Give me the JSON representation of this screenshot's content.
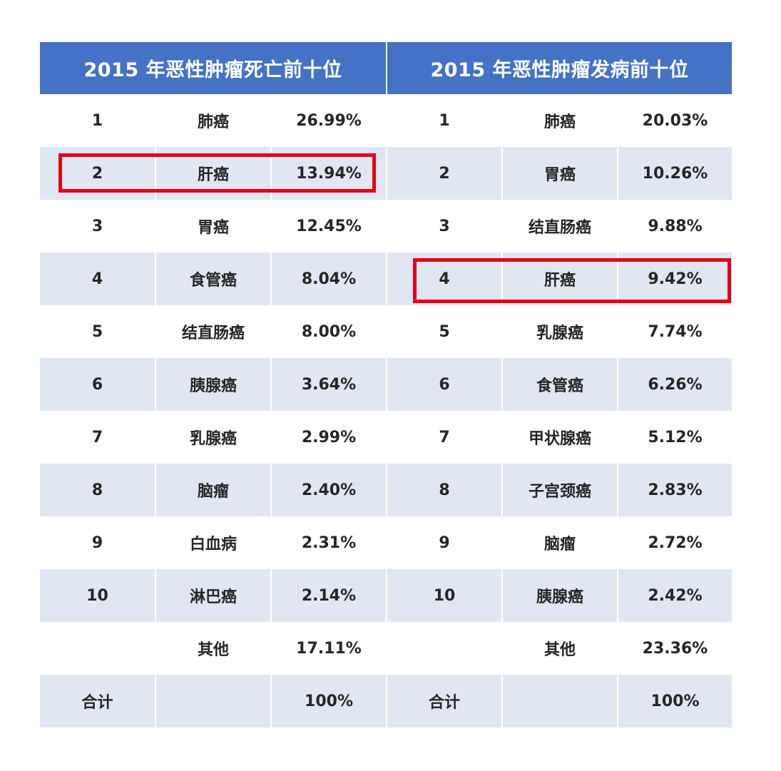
{
  "chart_data": {
    "type": "table",
    "columns": [
      {
        "title": "2015 年恶性肿瘤死亡前十位",
        "rows": [
          {
            "rank": "1",
            "name": "肺癌",
            "value": "26.99%"
          },
          {
            "rank": "2",
            "name": "肝癌",
            "value": "13.94%"
          },
          {
            "rank": "3",
            "name": "胃癌",
            "value": "12.45%"
          },
          {
            "rank": "4",
            "name": "食管癌",
            "value": "8.04%"
          },
          {
            "rank": "5",
            "name": "结直肠癌",
            "value": "8.00%"
          },
          {
            "rank": "6",
            "name": "胰腺癌",
            "value": "3.64%"
          },
          {
            "rank": "7",
            "name": "乳腺癌",
            "value": "2.99%"
          },
          {
            "rank": "8",
            "name": "脑瘤",
            "value": "2.40%"
          },
          {
            "rank": "9",
            "name": "白血病",
            "value": "2.31%"
          },
          {
            "rank": "10",
            "name": "淋巴癌",
            "value": "2.14%"
          },
          {
            "rank": "",
            "name": "其他",
            "value": "17.11%"
          },
          {
            "rank": "合计",
            "name": "",
            "value": "100%"
          }
        ],
        "highlighted_rank": "2"
      },
      {
        "title": "2015 年恶性肿瘤发病前十位",
        "rows": [
          {
            "rank": "1",
            "name": "肺癌",
            "value": "20.03%"
          },
          {
            "rank": "2",
            "name": "胃癌",
            "value": "10.26%"
          },
          {
            "rank": "3",
            "name": "结直肠癌",
            "value": "9.88%"
          },
          {
            "rank": "4",
            "name": "肝癌",
            "value": "9.42%"
          },
          {
            "rank": "5",
            "name": "乳腺癌",
            "value": "7.74%"
          },
          {
            "rank": "6",
            "name": "食管癌",
            "value": "6.26%"
          },
          {
            "rank": "7",
            "name": "甲状腺癌",
            "value": "5.12%"
          },
          {
            "rank": "8",
            "name": "子宫颈癌",
            "value": "2.83%"
          },
          {
            "rank": "9",
            "name": "脑瘤",
            "value": "2.72%"
          },
          {
            "rank": "10",
            "name": "胰腺癌",
            "value": "2.42%"
          },
          {
            "rank": "",
            "name": "其他",
            "value": "23.36%"
          },
          {
            "rank": "合计",
            "name": "",
            "value": "100%"
          }
        ],
        "highlighted_rank": "4"
      }
    ]
  },
  "colors": {
    "header_bg": "#4472c4",
    "header_text": "#ffffff",
    "stripe": "#e1e6f3",
    "highlight": "#e60012"
  }
}
